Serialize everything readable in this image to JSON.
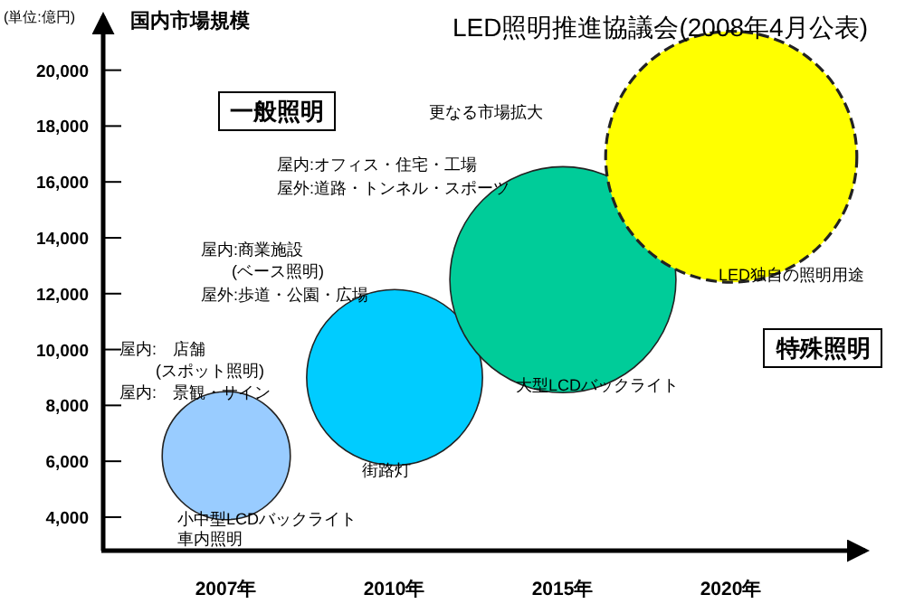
{
  "chart_data": {
    "type": "bubble",
    "title": "LED照明推進協議会(2008年4月公表)",
    "ylabel": "国内市場規模",
    "categories": [
      "2007年",
      "2010年",
      "2015年",
      "2020年"
    ],
    "ylim": [
      2800,
      21800
    ],
    "yticks": [
      {
        "value": 4000,
        "label": "4,000"
      },
      {
        "value": 6000,
        "label": "6,000"
      },
      {
        "value": 8000,
        "label": "8,000"
      },
      {
        "value": 10000,
        "label": "10,000"
      },
      {
        "value": 12000,
        "label": "12,000"
      },
      {
        "value": 14000,
        "label": "14,000"
      },
      {
        "value": 16000,
        "label": "16,000"
      },
      {
        "value": 18000,
        "label": "18,000"
      },
      {
        "value": 20000,
        "label": "20,000"
      }
    ],
    "series": [
      {
        "color": "#99ccff",
        "line_style": "solid",
        "values": [
          6200,
          null,
          null,
          null
        ],
        "sizes": [
          0.26,
          null,
          null,
          null
        ]
      },
      {
        "color": "#00ccff",
        "line_style": "solid",
        "values": [
          null,
          9000,
          null,
          null
        ],
        "sizes": [
          null,
          0.49,
          null,
          null
        ]
      },
      {
        "color": "#00cc99",
        "line_style": "solid",
        "values": [
          null,
          null,
          12500,
          null
        ],
        "sizes": [
          null,
          null,
          0.81,
          null
        ]
      },
      {
        "color": "#ffff00",
        "line_style": "dashed",
        "values": [
          null,
          null,
          null,
          16900
        ],
        "sizes": [
          null,
          null,
          null,
          1
        ]
      }
    ],
    "annotations": [
      "(単位:億円)",
      "一般照明",
      "特殊照明",
      "更なる市場拡大",
      "屋内:オフィス・住宅・工場",
      "屋外:道路・トンネル・スポーツ",
      "屋内:商業施設",
      "(ベース照明)",
      "屋外:歩道・公園・広場",
      "屋内:　店舗",
      "(スポット照明)",
      "屋内:　景観・サイン",
      "小中型LCDバックライト",
      "車内照明",
      "街路灯",
      "大型LCDバックライト",
      "LED独自の照明用途"
    ]
  }
}
